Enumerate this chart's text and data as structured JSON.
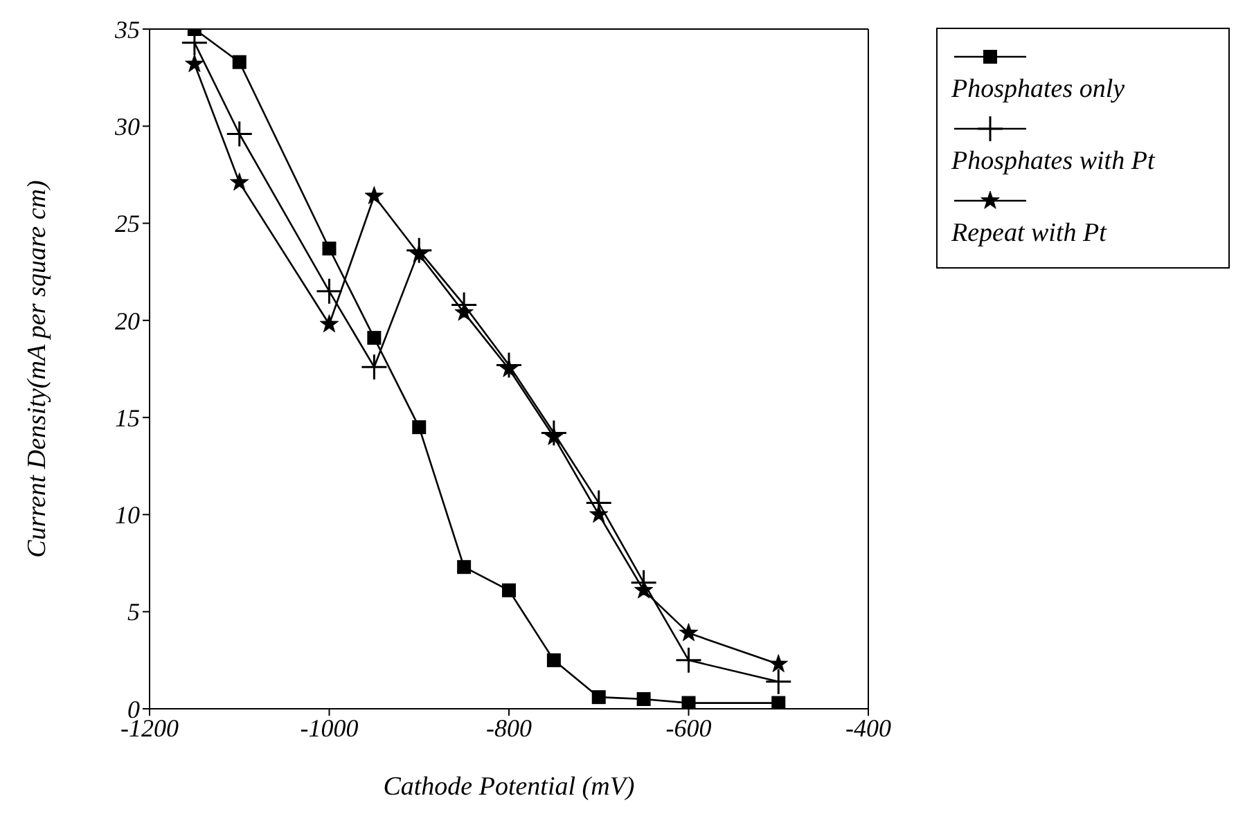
{
  "chart_data": {
    "type": "line",
    "xlabel": "Cathode Potential (mV)",
    "ylabel": "Current Density(mA per square cm)",
    "x": [
      -1150,
      -1100,
      -1000,
      -950,
      -900,
      -850,
      -800,
      -750,
      -700,
      -650,
      -600,
      -500
    ],
    "series": [
      {
        "name": "Phosphates only",
        "color": "#000000",
        "marker": "square",
        "values": [
          35,
          33.3,
          23.7,
          19.1,
          14.5,
          7.3,
          6.1,
          2.5,
          0.6,
          0.5,
          0.3,
          0.3
        ]
      },
      {
        "name": "Phosphates with Pt",
        "color": "#000000",
        "marker": "cross",
        "values": [
          34.3,
          29.6,
          21.5,
          17.6,
          23.6,
          20.8,
          17.7,
          14.2,
          10.6,
          6.5,
          2.5,
          1.4
        ]
      },
      {
        "name": "Repeat with Pt",
        "color": "#000000",
        "marker": "star",
        "values": [
          33.2,
          27.1,
          19.8,
          26.4,
          23.4,
          20.4,
          17.5,
          14.0,
          10.0,
          6.1,
          3.9,
          2.3
        ]
      }
    ],
    "xlim": [
      -1200,
      -400
    ],
    "xticks": [
      -1200,
      -1000,
      -800,
      -600,
      -400
    ],
    "ylim": [
      0,
      35
    ],
    "yticks": [
      0,
      5,
      10,
      15,
      20,
      25,
      30,
      35
    ],
    "grid": false,
    "legend": "right",
    "line_style": "solid"
  }
}
